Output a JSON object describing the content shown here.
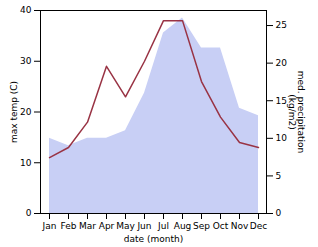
{
  "chart_data": {
    "type": "line",
    "xlabel": "date (month)",
    "ylabel": "max temp (C)",
    "y2label": "med. precipitation\n(kg/m2)",
    "categories": [
      "Jan",
      "Feb",
      "Mar",
      "Apr",
      "May",
      "Jun",
      "Jul",
      "Aug",
      "Sep",
      "Oct",
      "Nov",
      "Dec"
    ],
    "series": [
      {
        "type": "area",
        "axis": "y2",
        "color": "#c8cff5",
        "values": [
          10,
          9,
          10,
          10,
          11,
          16,
          24,
          26,
          22,
          22,
          14,
          13
        ]
      },
      {
        "type": "line",
        "color": "#993344",
        "values": [
          11,
          13,
          18,
          29,
          23,
          30,
          38,
          38,
          26,
          19,
          14,
          13
        ]
      }
    ],
    "ylim": [
      0,
      40
    ],
    "yticks": [
      0,
      10,
      20,
      30,
      40
    ],
    "y2lim": [
      0,
      27
    ],
    "y2ticks": [
      0,
      5,
      10,
      15,
      20,
      25
    ],
    "grid": false
  }
}
